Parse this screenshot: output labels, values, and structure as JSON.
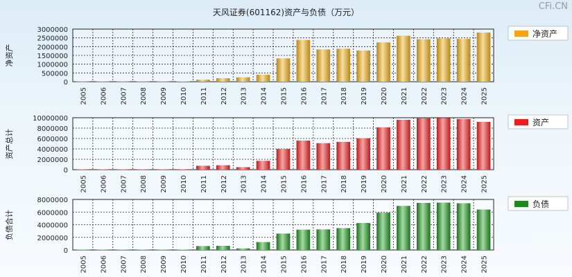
{
  "title": "天风证券(601162)资产与负债（万元）",
  "watermark": "CFi.CN",
  "chart_data": [
    {
      "type": "bar",
      "id": "net-assets",
      "ylabel": "净资产",
      "legend": "净资产",
      "legend_color": "#f5a31a",
      "bar_light": "#f7df9a",
      "bar_dark": "#b8861c",
      "ylim": [
        0,
        3000000
      ],
      "yticks": [
        "0",
        "500000",
        "1000000",
        "1500000",
        "2000000",
        "2500000",
        "3000000"
      ],
      "categories": [
        "2005",
        "2006",
        "2007",
        "2008",
        "2009",
        "2010",
        "2011",
        "2012",
        "2013",
        "2014",
        "2015",
        "2016",
        "2017",
        "2018",
        "2019",
        "2020",
        "2021",
        "2022",
        "2023",
        "2024",
        "2025"
      ],
      "values": [
        15000,
        15000,
        15000,
        15000,
        15000,
        20000,
        120000,
        200000,
        250000,
        400000,
        1330000,
        2380000,
        1840000,
        1880000,
        1780000,
        2240000,
        2620000,
        2420000,
        2470000,
        2440000,
        2800000
      ]
    },
    {
      "type": "bar",
      "id": "total-assets",
      "ylabel": "资产总计",
      "legend": "资产",
      "legend_color": "#ee1c1c",
      "bar_light": "#f7a3a3",
      "bar_dark": "#b81c1c",
      "ylim": [
        0,
        10000000
      ],
      "yticks": [
        "0",
        "2000000",
        "4000000",
        "6000000",
        "8000000",
        "10000000"
      ],
      "categories": [
        "2005",
        "2006",
        "2007",
        "2008",
        "2009",
        "2010",
        "2011",
        "2012",
        "2013",
        "2014",
        "2015",
        "2016",
        "2017",
        "2018",
        "2019",
        "2020",
        "2021",
        "2022",
        "2023",
        "2024",
        "2025"
      ],
      "values": [
        60000,
        60000,
        60000,
        60000,
        60000,
        80000,
        750000,
        850000,
        480000,
        1700000,
        3990000,
        5600000,
        5100000,
        5350000,
        6050000,
        8150000,
        9600000,
        9900000,
        9950000,
        9750000,
        9200000
      ]
    },
    {
      "type": "bar",
      "id": "total-liabilities",
      "ylabel": "负债合计",
      "legend": "负债",
      "legend_color": "#1c8a1c",
      "bar_light": "#a3dca3",
      "bar_dark": "#1f6e1f",
      "ylim": [
        0,
        8000000
      ],
      "yticks": [
        "0",
        "2000000",
        "4000000",
        "6000000",
        "8000000"
      ],
      "categories": [
        "2005",
        "2006",
        "2007",
        "2008",
        "2009",
        "2010",
        "2011",
        "2012",
        "2013",
        "2014",
        "2015",
        "2016",
        "2017",
        "2018",
        "2019",
        "2020",
        "2021",
        "2022",
        "2023",
        "2024",
        "2025"
      ],
      "values": [
        45000,
        45000,
        45000,
        45000,
        45000,
        60000,
        620000,
        660000,
        250000,
        1250000,
        2600000,
        3220000,
        3260000,
        3460000,
        4270000,
        5910000,
        6980000,
        7450000,
        7500000,
        7400000,
        6400000
      ]
    }
  ]
}
